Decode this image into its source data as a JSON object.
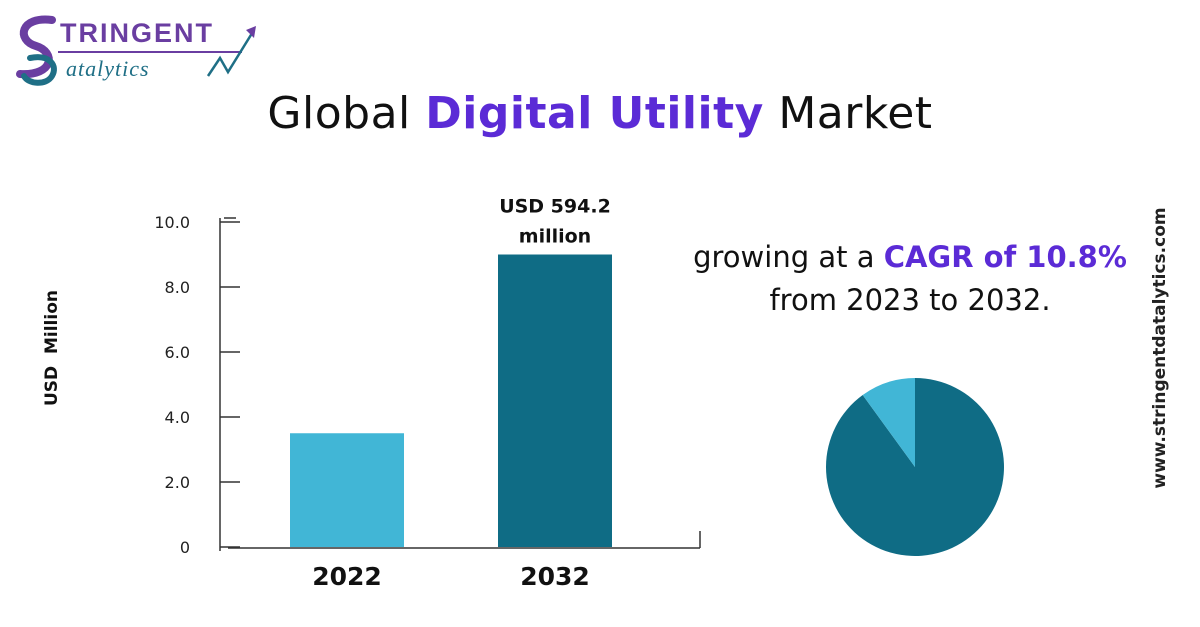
{
  "brand": {
    "line1": "TRINGENT",
    "line2": "atalytics",
    "colors": {
      "purple": "#6a3ea1",
      "teal": "#1f6f86"
    }
  },
  "title": {
    "prefix": "Global",
    "highlight": "Digital Utility",
    "suffix": "Market"
  },
  "cagr": {
    "prefix": "growing at a",
    "highlight": "CAGR of 10.8%",
    "line2": "from 2023 to 2032."
  },
  "website": "www.stringentdatalytics.com",
  "chart_data": [
    {
      "type": "bar",
      "categories": [
        "2022",
        "2032"
      ],
      "values": [
        3.5,
        9.0
      ],
      "colors": [
        "#41b6d6",
        "#0f6c85"
      ],
      "ylabel": "USD  Million",
      "ylim": [
        0,
        10
      ],
      "yticks": [
        0,
        2,
        4,
        6,
        8,
        10
      ],
      "ytick_labels": [
        "0",
        "2.0",
        "4.0",
        "6.0",
        "8.0",
        "10.0"
      ],
      "annotation": {
        "line1": "USD 594.2",
        "line2": "million"
      },
      "grid": false
    },
    {
      "type": "pie",
      "slices": [
        {
          "value": 90,
          "color": "#0f6c85"
        },
        {
          "value": 10,
          "color": "#41b6d6"
        }
      ]
    }
  ]
}
